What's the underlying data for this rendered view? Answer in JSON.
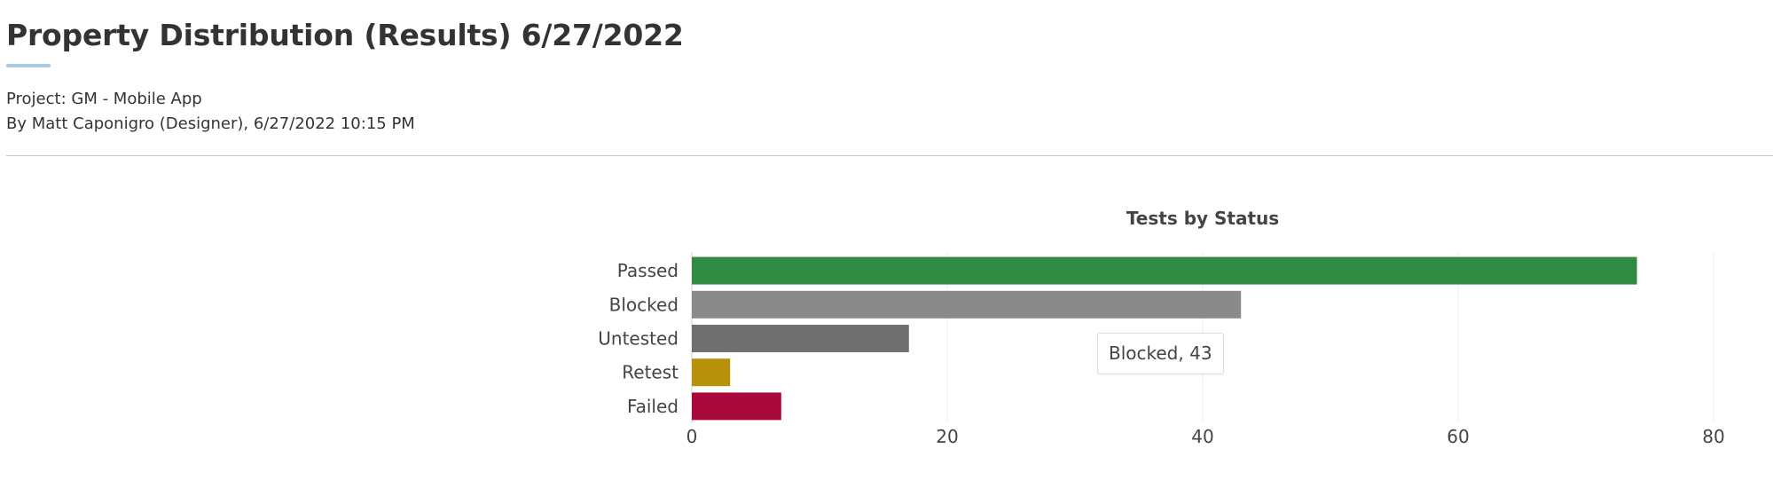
{
  "header": {
    "title": "Property Distribution (Results) 6/27/2022",
    "project": "Project: GM - Mobile App",
    "author_line": "By Matt Caponigro (Designer), 6/27/2022 10:15 PM"
  },
  "tooltip": {
    "text": "Blocked, 43"
  },
  "chart_data": {
    "type": "bar",
    "orientation": "horizontal",
    "title": "Tests by Status",
    "xlabel": "",
    "ylabel": "",
    "categories": [
      "Passed",
      "Blocked",
      "Untested",
      "Retest",
      "Failed"
    ],
    "values": [
      74,
      43,
      17,
      3,
      7
    ],
    "colors": [
      "#318a42",
      "#8a8a8a",
      "#6f6f6f",
      "#b8910a",
      "#a8093a"
    ],
    "xlim": [
      0,
      80
    ],
    "xticks": [
      0,
      20,
      40,
      60,
      80
    ],
    "grid": true,
    "legend": "none"
  }
}
